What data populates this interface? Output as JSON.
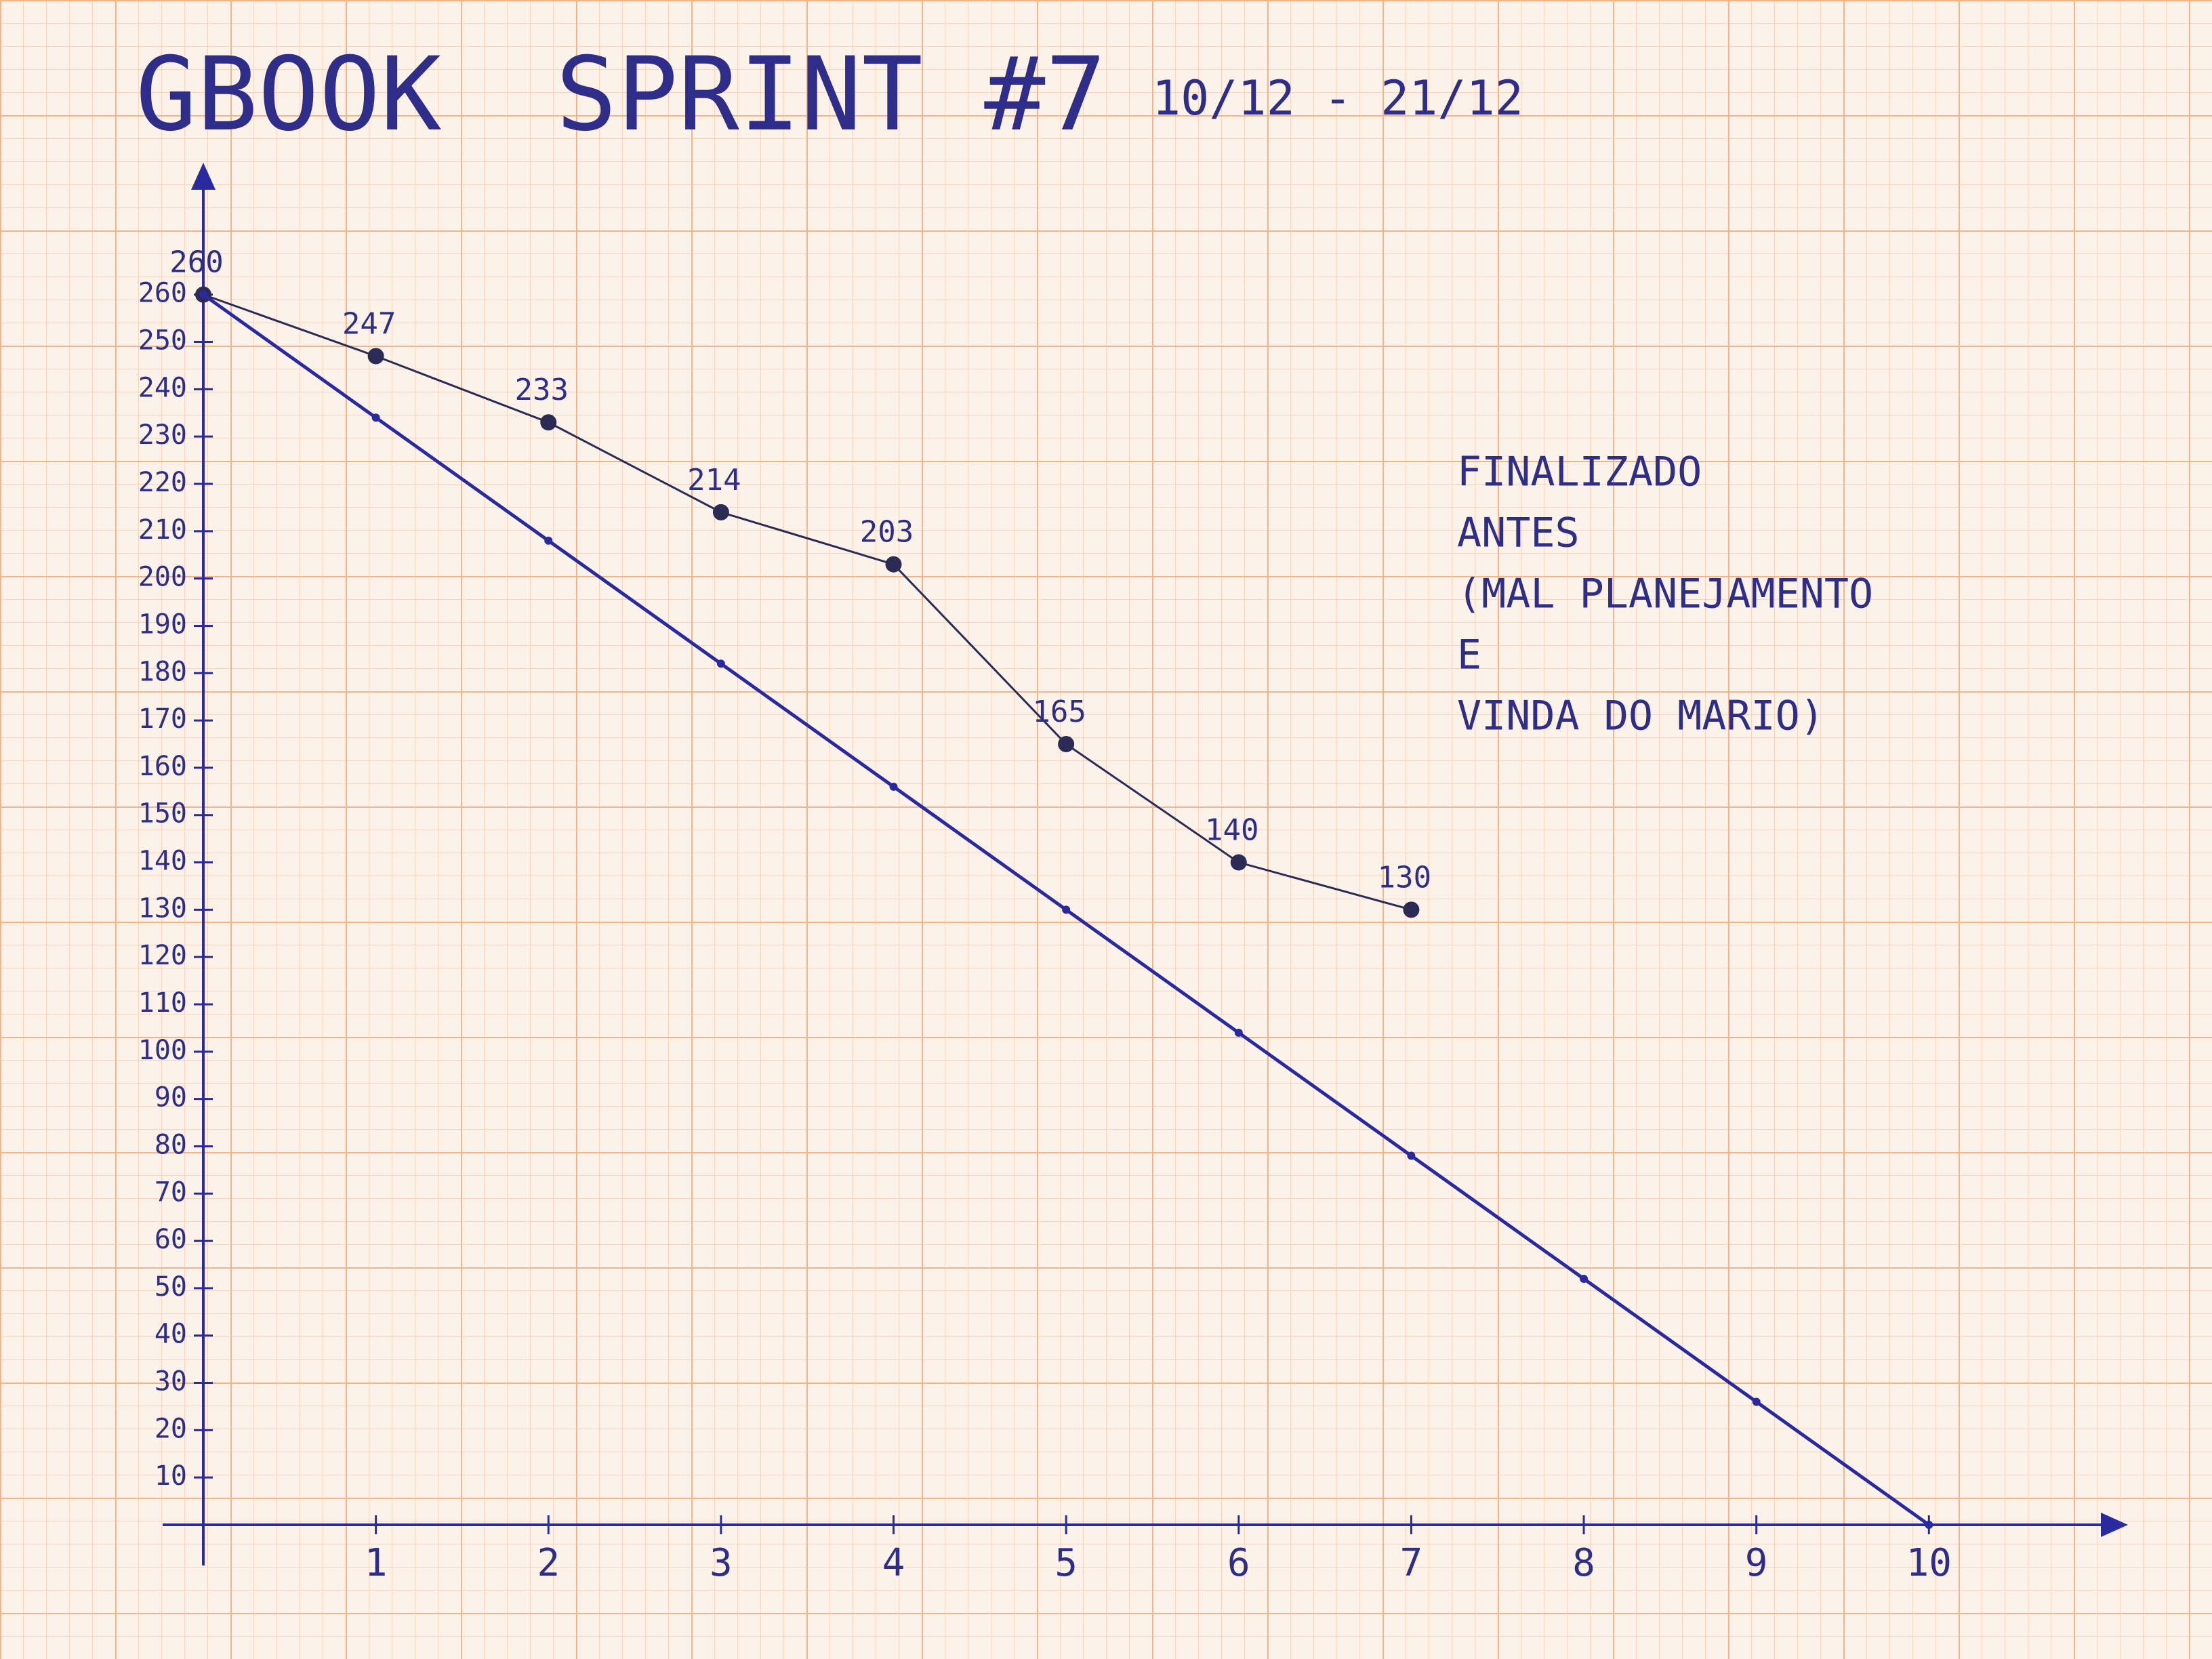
{
  "chart_data": {
    "type": "line",
    "title": "GBOOK",
    "subtitle": "SPRINT #7",
    "date_range": "10/12 - 21/12",
    "annotation": [
      "FINALIZADO",
      "ANTES",
      "(MAL PLANEJAMENTO",
      "E",
      "VINDA DO MARIO)"
    ],
    "x": [
      0,
      1,
      2,
      3,
      4,
      5,
      6,
      7,
      8,
      9,
      10
    ],
    "series": [
      {
        "color": "#2b2b55",
        "values": [
          260,
          247,
          233,
          214,
          203,
          165,
          140,
          130,
          null,
          null,
          null
        ],
        "data_labels": true
      },
      {
        "color": "#2a2aa0",
        "values": [
          260,
          234,
          208,
          182,
          156,
          130,
          104,
          78,
          52,
          26,
          0
        ],
        "data_labels": false
      }
    ],
    "xlim": [
      0,
      10.8
    ],
    "xticks": [
      1,
      2,
      3,
      4,
      5,
      6,
      7,
      8,
      9,
      10
    ],
    "ylim": [
      0,
      275
    ],
    "yticks": [
      10,
      20,
      30,
      40,
      50,
      60,
      70,
      80,
      90,
      100,
      110,
      120,
      130,
      140,
      150,
      160,
      170,
      180,
      190,
      200,
      210,
      220,
      230,
      240,
      250,
      260
    ],
    "axis_color": "#2a2aa0"
  }
}
